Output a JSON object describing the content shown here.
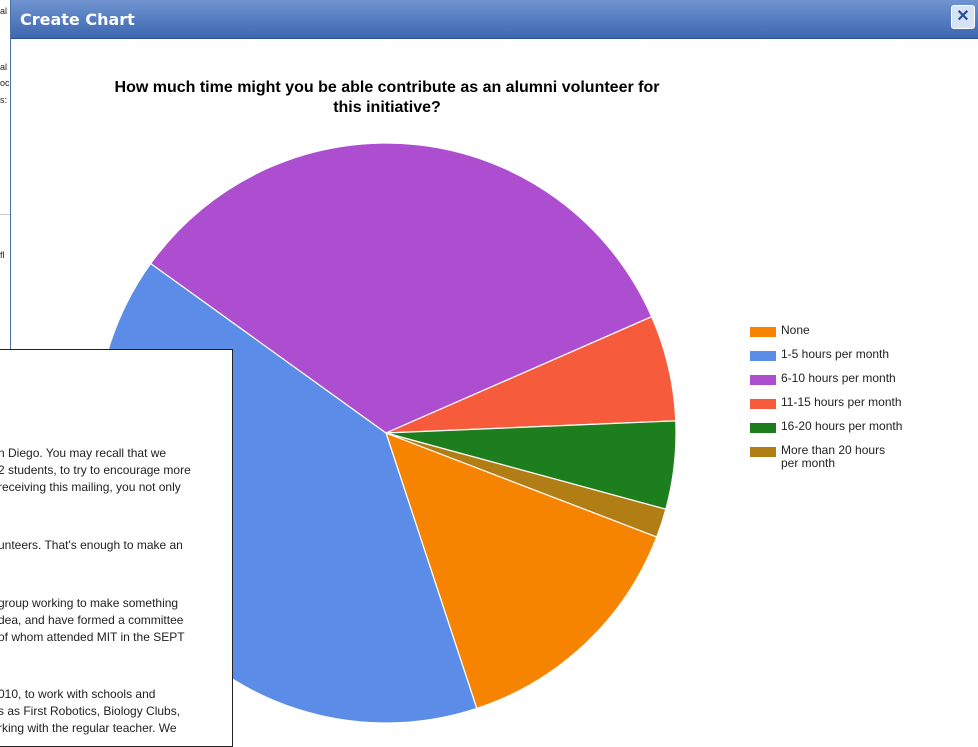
{
  "background": {
    "fragments": [
      "al",
      "al",
      "oc",
      "s:",
      "fl"
    ]
  },
  "dialog": {
    "title": "Create Chart",
    "close_icon": "close-icon"
  },
  "chart_data": {
    "type": "pie",
    "title": "How much time might you be able contribute as an alumni volunteer for this initiative?",
    "labels": [
      "None",
      "1-5 hours per month",
      "6-10 hours per month",
      "11-15 hours per month",
      "16-20 hours per month",
      "More than 20 hours per month"
    ],
    "values": [
      14.1,
      40.0,
      33.5,
      5.9,
      4.9,
      1.6
    ],
    "colors": [
      "#f78400",
      "#5b8ce8",
      "#ad4dd0",
      "#f65c3b",
      "#1d7e1d",
      "#b17e16"
    ],
    "legend_placement": "right"
  },
  "letter": {
    "lines": [
      "n Diego.  You may recall that we",
      "2 students, to try to encourage more",
      "receiving this mailing, you not only",
      "unteers.  That's enough to make an",
      "group working to make something",
      "dea, and have formed a committee",
      "of whom attended MIT in the SEPT",
      "010, to work with schools and",
      "s as First Robotics, Biology Clubs,",
      "rking with the regular teacher.  We"
    ]
  }
}
